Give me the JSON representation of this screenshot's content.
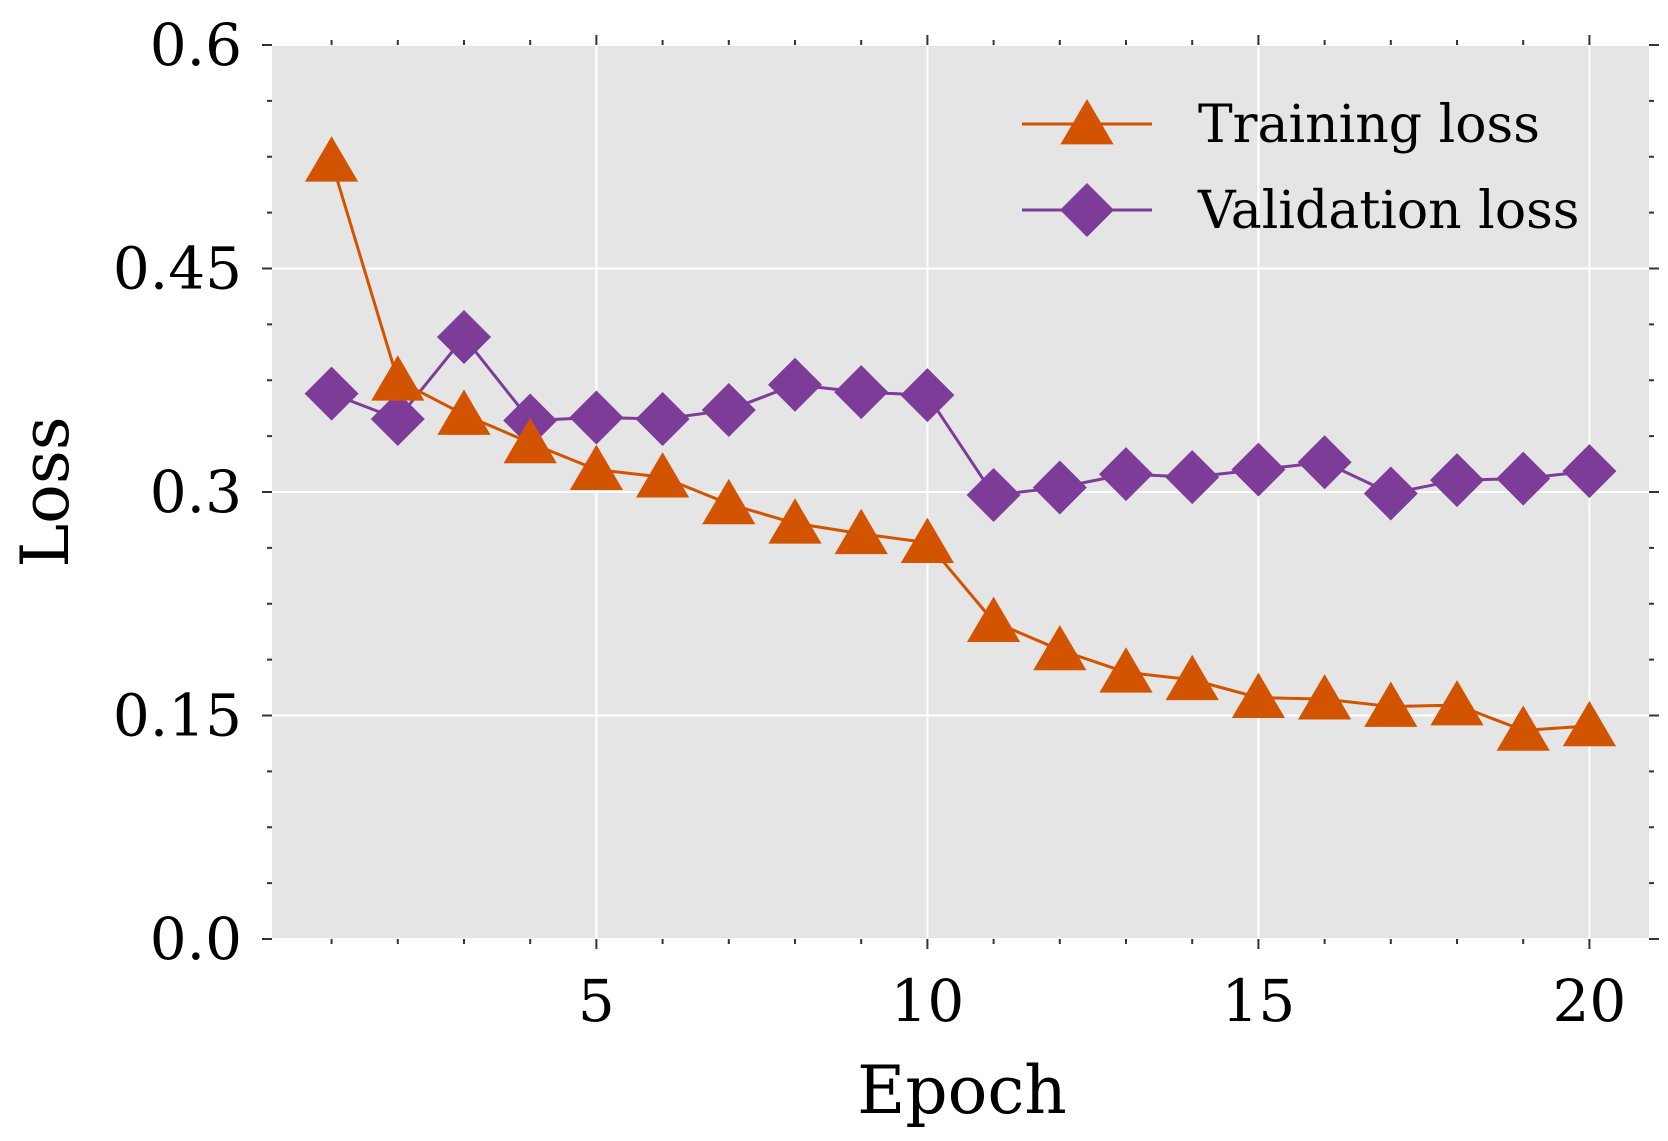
{
  "chart_data": {
    "type": "line",
    "title": "",
    "xlabel": "Epoch",
    "ylabel": "Loss",
    "xlim": [
      0.1,
      20.9
    ],
    "ylim": [
      0.0,
      0.6
    ],
    "xticks": [
      5,
      10,
      15,
      20
    ],
    "xtick_labels": [
      "5",
      "10",
      "15",
      "20"
    ],
    "yticks": [
      0.0,
      0.15,
      0.3,
      0.45,
      0.6
    ],
    "ytick_labels": [
      "0.0",
      "0.15",
      "0.3",
      "0.45",
      "0.6"
    ],
    "grid": true,
    "legend_position": "top-right",
    "x": [
      1,
      2,
      3,
      4,
      5,
      6,
      7,
      8,
      9,
      10,
      11,
      12,
      13,
      14,
      15,
      16,
      17,
      18,
      19,
      20
    ],
    "series": [
      {
        "name": "Training loss",
        "color": "#d35400",
        "marker": "triangle",
        "values": [
          0.522,
          0.375,
          0.352,
          0.333,
          0.315,
          0.31,
          0.292,
          0.279,
          0.272,
          0.266,
          0.213,
          0.194,
          0.179,
          0.174,
          0.162,
          0.161,
          0.156,
          0.157,
          0.14,
          0.143
        ]
      },
      {
        "name": "Validation loss",
        "color": "#7d3c98",
        "marker": "diamond",
        "values": [
          0.366,
          0.349,
          0.404,
          0.348,
          0.35,
          0.349,
          0.355,
          0.372,
          0.367,
          0.365,
          0.298,
          0.303,
          0.312,
          0.31,
          0.315,
          0.32,
          0.299,
          0.308,
          0.309,
          0.314
        ]
      }
    ]
  }
}
